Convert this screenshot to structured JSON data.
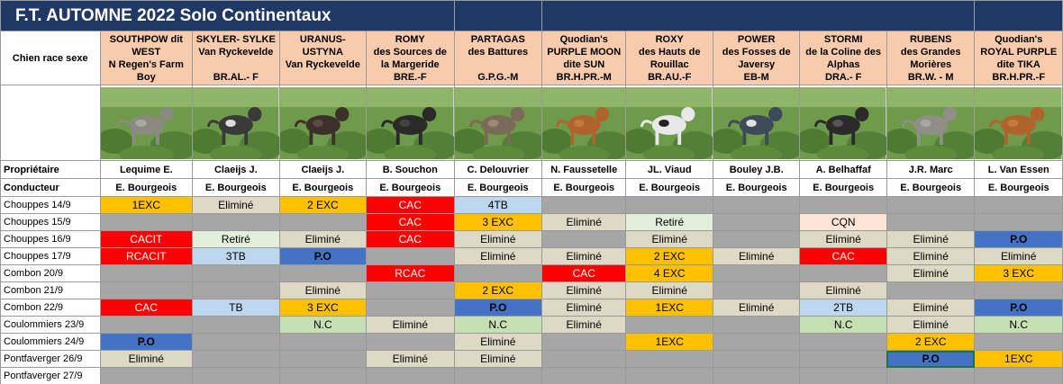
{
  "sheet": {
    "title": "F.T. AUTOMNE 2022 Solo Continentaux",
    "row_labels": {
      "dog": "Chien race sexe",
      "owner": "Propriétaire",
      "handler": "Conducteur"
    },
    "dogs": [
      {
        "lines": [
          "SOUTHPOW dit",
          "WEST",
          "N Regen's Farm",
          "Boy"
        ],
        "owner": "Lequime E.",
        "handler": "E. Bourgeois",
        "photo_icon": "grey-weimaraner-photo"
      },
      {
        "lines": [
          "SKYLER- SYLKE",
          "Van Ryckevelde",
          "",
          "BR.AL.- F"
        ],
        "owner": "Claeijs J.",
        "handler": "E. Bourgeois",
        "photo_icon": "black-white-pointer-photo"
      },
      {
        "lines": [
          "URANUS-",
          "USTYNA",
          "Van Ryckevelde",
          ""
        ],
        "owner": "Claeijs J.",
        "handler": "E. Bourgeois",
        "photo_icon": "dark-pointer-photo"
      },
      {
        "lines": [
          "ROMY",
          "des Sources de",
          "la Margeride",
          "BRE.-F"
        ],
        "owner": "B. Souchon",
        "handler": "E. Bourgeois",
        "photo_icon": "black-spaniel-photo"
      },
      {
        "lines": [
          "PARTAGAS",
          "des Battures",
          "",
          "G.P.G.-M"
        ],
        "owner": "C. Delouvrier",
        "handler": "E. Bourgeois",
        "photo_icon": "griffon-photo"
      },
      {
        "lines": [
          "Quodian's",
          "PURPLE MOON",
          "dite SUN",
          "BR.H.PR.-M"
        ],
        "owner": "N. Faussetelle",
        "handler": "E. Bourgeois",
        "photo_icon": "red-pointer-photo"
      },
      {
        "lines": [
          "ROXY",
          "des Hauts de",
          "Rouillac",
          "BR.AU.-F"
        ],
        "owner": "JL. Viaud",
        "handler": "E. Bourgeois",
        "photo_icon": "white-black-pointer-photo"
      },
      {
        "lines": [
          "POWER",
          "des Fosses de",
          "Javersy",
          "EB-M"
        ],
        "owner": "Bouley J.B.",
        "handler": "E. Bourgeois",
        "photo_icon": "blue-setter-photo"
      },
      {
        "lines": [
          "STORMI",
          "de la Coline des",
          "Alphas",
          "DRA.- F"
        ],
        "owner": "A. Belhaffaf",
        "handler": "E. Bourgeois",
        "photo_icon": "black-drahthaar-photo"
      },
      {
        "lines": [
          "RUBENS",
          "des Grandes",
          "Morières",
          "BR.W. - M"
        ],
        "owner": "J.R. Marc",
        "handler": "E. Bourgeois",
        "photo_icon": "grey-weimaraner-photo"
      },
      {
        "lines": [
          "Quodian's",
          "ROYAL PURPLE",
          "dite TIKA",
          "BR.H.PR.-F"
        ],
        "owner": "L. Van Essen",
        "handler": "E. Bourgeois",
        "photo_icon": "red-pointer-photo"
      }
    ],
    "rows": [
      {
        "label": "Chouppes 14/9",
        "cells": [
          {
            "text": "1EXC",
            "status": "exc"
          },
          {
            "text": "Eliminé",
            "status": "elim"
          },
          {
            "text": "2 EXC",
            "status": "exc"
          },
          {
            "text": "CAC",
            "status": "cac"
          },
          {
            "text": "4TB",
            "status": "tb"
          },
          {
            "text": "",
            "status": "e"
          },
          {
            "text": "",
            "status": "e"
          },
          {
            "text": "",
            "status": "e"
          },
          {
            "text": "",
            "status": "e"
          },
          {
            "text": "",
            "status": "e"
          },
          {
            "text": "",
            "status": "e"
          }
        ]
      },
      {
        "label": "Chouppes 15/9",
        "cells": [
          {
            "text": "",
            "status": "e"
          },
          {
            "text": "",
            "status": "e"
          },
          {
            "text": "",
            "status": "e"
          },
          {
            "text": "CAC",
            "status": "cac"
          },
          {
            "text": "3 EXC",
            "status": "exc"
          },
          {
            "text": "Eliminé",
            "status": "elim"
          },
          {
            "text": "Retiré",
            "status": "ret"
          },
          {
            "text": "",
            "status": "e"
          },
          {
            "text": "CQN",
            "status": "cqn"
          },
          {
            "text": "",
            "status": "e"
          },
          {
            "text": "",
            "status": "e"
          }
        ]
      },
      {
        "label": "Chouppes 16/9",
        "cells": [
          {
            "text": "CACIT",
            "status": "cac"
          },
          {
            "text": "Retiré",
            "status": "ret"
          },
          {
            "text": "Eliminé",
            "status": "elim"
          },
          {
            "text": "CAC",
            "status": "cac"
          },
          {
            "text": "Eliminé",
            "status": "elim"
          },
          {
            "text": "",
            "status": "e"
          },
          {
            "text": "Eliminé",
            "status": "elim"
          },
          {
            "text": "",
            "status": "e"
          },
          {
            "text": "Eliminé",
            "status": "elim"
          },
          {
            "text": "Eliminé",
            "status": "elim"
          },
          {
            "text": "P.O",
            "status": "po"
          }
        ]
      },
      {
        "label": "Chouppes 17/9",
        "cells": [
          {
            "text": "RCACIT",
            "status": "cac"
          },
          {
            "text": "3TB",
            "status": "tb"
          },
          {
            "text": "P.O",
            "status": "po"
          },
          {
            "text": "",
            "status": "e"
          },
          {
            "text": "Eliminé",
            "status": "elim"
          },
          {
            "text": "Eliminé",
            "status": "elim"
          },
          {
            "text": "2 EXC",
            "status": "exc"
          },
          {
            "text": "Eliminé",
            "status": "elim"
          },
          {
            "text": "CAC",
            "status": "cac"
          },
          {
            "text": "Eliminé",
            "status": "elim"
          },
          {
            "text": "Eliminé",
            "status": "elim"
          }
        ]
      },
      {
        "label": "Combon 20/9",
        "cells": [
          {
            "text": "",
            "status": "e"
          },
          {
            "text": "",
            "status": "e"
          },
          {
            "text": "",
            "status": "e"
          },
          {
            "text": "RCAC",
            "status": "cac"
          },
          {
            "text": "",
            "status": "e"
          },
          {
            "text": "CAC",
            "status": "cac"
          },
          {
            "text": "4 EXC",
            "status": "exc"
          },
          {
            "text": "",
            "status": "e"
          },
          {
            "text": "",
            "status": "e"
          },
          {
            "text": "Eliminé",
            "status": "elim"
          },
          {
            "text": "3 EXC",
            "status": "exc"
          }
        ]
      },
      {
        "label": "Combon 21/9",
        "cells": [
          {
            "text": "",
            "status": "e"
          },
          {
            "text": "",
            "status": "e"
          },
          {
            "text": "Eliminé",
            "status": "elim"
          },
          {
            "text": "",
            "status": "e"
          },
          {
            "text": "2 EXC",
            "status": "exc"
          },
          {
            "text": "Eliminé",
            "status": "elim"
          },
          {
            "text": "Eliminé",
            "status": "elim"
          },
          {
            "text": "",
            "status": "e"
          },
          {
            "text": "Eliminé",
            "status": "elim"
          },
          {
            "text": "",
            "status": "e"
          },
          {
            "text": "",
            "status": "e"
          }
        ]
      },
      {
        "label": "Combon 22/9",
        "cells": [
          {
            "text": "CAC",
            "status": "cac"
          },
          {
            "text": "TB",
            "status": "tb"
          },
          {
            "text": "3 EXC",
            "status": "exc"
          },
          {
            "text": "",
            "status": "e"
          },
          {
            "text": "P.O",
            "status": "po"
          },
          {
            "text": "Eliminé",
            "status": "elim"
          },
          {
            "text": "1EXC",
            "status": "exc"
          },
          {
            "text": "Eliminé",
            "status": "elim"
          },
          {
            "text": "2TB",
            "status": "tb"
          },
          {
            "text": "Eliminé",
            "status": "elim"
          },
          {
            "text": "P.O",
            "status": "po"
          }
        ]
      },
      {
        "label": "Coulommiers 23/9",
        "cells": [
          {
            "text": "",
            "status": "e"
          },
          {
            "text": "",
            "status": "e"
          },
          {
            "text": "N.C",
            "status": "nc"
          },
          {
            "text": "Eliminé",
            "status": "elim"
          },
          {
            "text": "N.C",
            "status": "nc"
          },
          {
            "text": "Eliminé",
            "status": "elim"
          },
          {
            "text": "",
            "status": "e"
          },
          {
            "text": "",
            "status": "e"
          },
          {
            "text": "N.C",
            "status": "nc"
          },
          {
            "text": "Eliminé",
            "status": "elim"
          },
          {
            "text": "N.C",
            "status": "nc"
          }
        ]
      },
      {
        "label": "Coulommiers 24/9",
        "cells": [
          {
            "text": "P.O",
            "status": "po"
          },
          {
            "text": "",
            "status": "e"
          },
          {
            "text": "",
            "status": "e"
          },
          {
            "text": "",
            "status": "e"
          },
          {
            "text": "Eliminé",
            "status": "elim"
          },
          {
            "text": "",
            "status": "e"
          },
          {
            "text": "1EXC",
            "status": "exc"
          },
          {
            "text": "",
            "status": "e"
          },
          {
            "text": "",
            "status": "e"
          },
          {
            "text": "2 EXC",
            "status": "exc"
          },
          {
            "text": "",
            "status": "e"
          }
        ]
      },
      {
        "label": "Pontfaverger 26/9",
        "cells": [
          {
            "text": "Eliminé",
            "status": "elim"
          },
          {
            "text": "",
            "status": "e"
          },
          {
            "text": "",
            "status": "e"
          },
          {
            "text": "Eliminé",
            "status": "elim"
          },
          {
            "text": "Eliminé",
            "status": "elim"
          },
          {
            "text": "",
            "status": "e"
          },
          {
            "text": "",
            "status": "e"
          },
          {
            "text": "",
            "status": "e"
          },
          {
            "text": "",
            "status": "e"
          },
          {
            "text": "P.O",
            "status": "po",
            "selected": true
          },
          {
            "text": "1EXC",
            "status": "exc"
          }
        ]
      },
      {
        "label": "Pontfaverger 27/9",
        "cells": [
          {
            "text": "",
            "status": "e"
          },
          {
            "text": "",
            "status": "e"
          },
          {
            "text": "",
            "status": "e"
          },
          {
            "text": "",
            "status": "e"
          },
          {
            "text": "",
            "status": "e"
          },
          {
            "text": "",
            "status": "e"
          },
          {
            "text": "",
            "status": "e"
          },
          {
            "text": "",
            "status": "e"
          },
          {
            "text": "",
            "status": "e"
          },
          {
            "text": "",
            "status": "e"
          },
          {
            "text": "",
            "status": "e"
          }
        ]
      }
    ],
    "colors": {
      "title_bg": "#1f3864",
      "header_bg": "#f8cbad",
      "empty": "#a6a6a6",
      "exc": "#ffc000",
      "cac": "#ff0000",
      "po": "#4472c4",
      "tb": "#bdd7ee",
      "elim": "#ddd9c4",
      "retire": "#e2efda",
      "cqn": "#fce4d6",
      "nc": "#c6e0b4"
    }
  }
}
